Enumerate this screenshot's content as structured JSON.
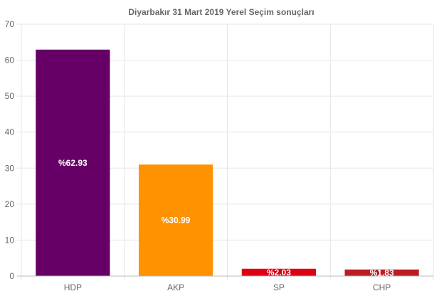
{
  "chart_data": {
    "type": "bar",
    "title": "Diyarbakır 31 Mart 2019 Yerel Seçim sonuçları",
    "categories": [
      "HDP",
      "AKP",
      "SP",
      "CHP"
    ],
    "values": [
      62.93,
      30.99,
      2.03,
      1.83
    ],
    "data_labels": [
      "%62.93",
      "%30.99",
      "%2.03",
      "%1.83"
    ],
    "colors": [
      "#660066",
      "#ff9200",
      "#dd0011",
      "#bb1d23"
    ],
    "ylim": [
      0,
      70
    ],
    "yticks": [
      0,
      10,
      20,
      30,
      40,
      50,
      60,
      70
    ],
    "xlabel": "",
    "ylabel": "",
    "grid": true,
    "legend": "none"
  }
}
